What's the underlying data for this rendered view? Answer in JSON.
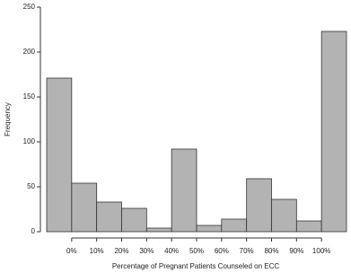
{
  "chart_data": {
    "type": "histogram",
    "xlabel": "Percentage of Pregnant Patients Counseled on ECC",
    "ylabel": "Frequency",
    "bins": [
      -10,
      0,
      10,
      20,
      30,
      40,
      50,
      60,
      70,
      80,
      90,
      100,
      110
    ],
    "values": [
      171,
      54,
      33,
      26,
      4,
      92,
      7,
      14,
      59,
      36,
      12,
      223
    ],
    "color": "#b3b3b3",
    "xlim": [
      -10,
      110
    ],
    "xticks": [
      {
        "value": 0,
        "label": "0%"
      },
      {
        "value": 10,
        "label": "10%"
      },
      {
        "value": 20,
        "label": "20%"
      },
      {
        "value": 30,
        "label": "30%"
      },
      {
        "value": 40,
        "label": "40%"
      },
      {
        "value": 50,
        "label": "50%"
      },
      {
        "value": 60,
        "label": "60%"
      },
      {
        "value": 70,
        "label": "70%"
      },
      {
        "value": 80,
        "label": "80%"
      },
      {
        "value": 90,
        "label": "90%"
      },
      {
        "value": 100,
        "label": "100%"
      }
    ],
    "ylim": [
      0,
      250
    ],
    "yticks": [
      0,
      50,
      100,
      150,
      200,
      250
    ]
  }
}
